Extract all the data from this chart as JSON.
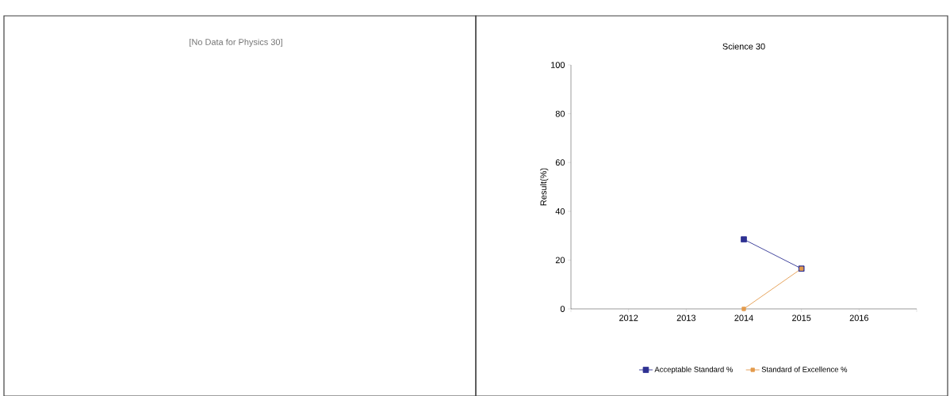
{
  "chart_data": [
    {
      "type": "other",
      "annotations": [
        "[No Data for Physics 30]"
      ]
    },
    {
      "type": "line",
      "title": "Science 30",
      "ylabel": "Result(%)",
      "x": [
        2014,
        2015
      ],
      "series": [
        {
          "name": "Acceptable Standard %",
          "color": "#2e3192",
          "values": [
            28.5,
            16.5
          ]
        },
        {
          "name": "Standard of Excellence %",
          "color": "#e39a4c",
          "values": [
            0,
            16.5
          ]
        }
      ],
      "xlim": [
        2011,
        2017
      ],
      "xticks": [
        {
          "value": 2011,
          "label": null
        },
        2012,
        2013,
        2014,
        2015,
        2016,
        {
          "value": 2017,
          "label": null
        }
      ],
      "ylim": [
        0,
        100
      ],
      "yticks": [
        0,
        20,
        40,
        60,
        80,
        100
      ],
      "grid": false,
      "legend": "bottom",
      "marker": "square",
      "line_style": "solid"
    }
  ]
}
